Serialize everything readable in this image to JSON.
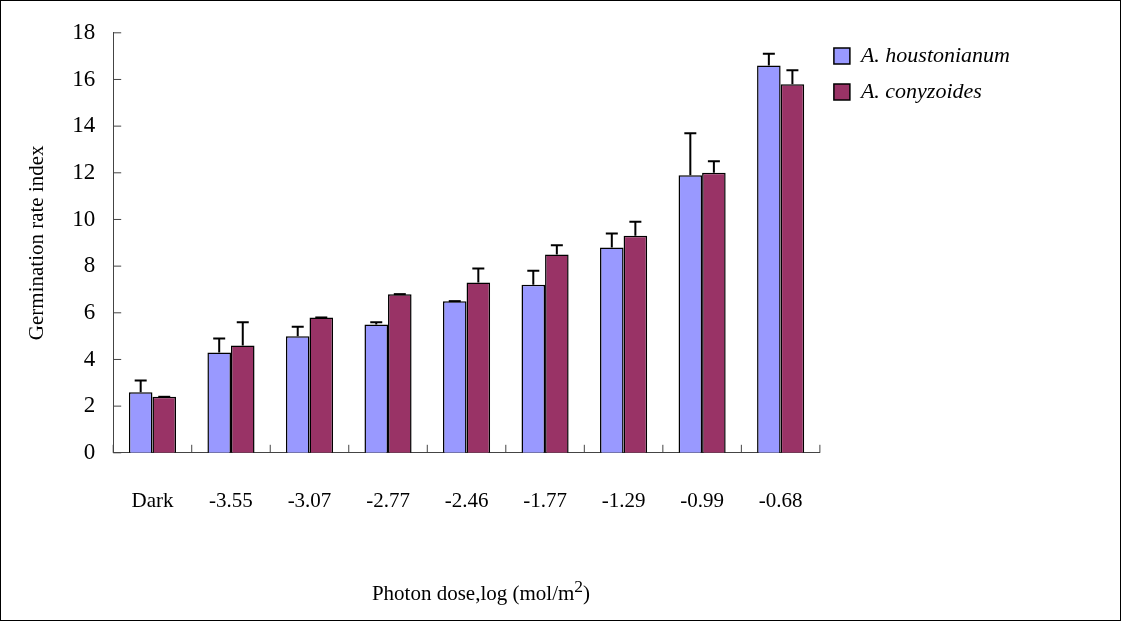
{
  "chart_data": {
    "type": "bar",
    "xlabel": "Photon dose,log (mol/m$^{2}$)",
    "ylabel": "Germination rate index",
    "categories": [
      "Dark",
      "-3.55",
      "-3.07",
      "-2.77",
      "-2.46",
      "-1.77",
      "-1.29",
      "-0.99",
      "-0.68"
    ],
    "series": [
      {
        "name": "A. houstonianum",
        "color": "#9999ff",
        "values": [
          2.6,
          4.3,
          5.0,
          5.5,
          6.5,
          7.2,
          8.8,
          11.9,
          16.6
        ],
        "errors": [
          0.5,
          0.6,
          0.4,
          0.1,
          0,
          0.6,
          0.6,
          1.8,
          0.5
        ]
      },
      {
        "name": "A. conyzoides",
        "color": "#993366",
        "values": [
          2.4,
          4.6,
          5.8,
          6.8,
          7.3,
          8.5,
          9.3,
          12.0,
          15.8
        ],
        "errors": [
          0,
          1.0,
          0,
          0,
          0.6,
          0.4,
          0.6,
          0.5,
          0.6
        ]
      }
    ],
    "ylim": [
      0,
      18
    ],
    "yticks": [
      0,
      2,
      4,
      6,
      8,
      10,
      12,
      14,
      16,
      18
    ],
    "grid": false,
    "legend": "top right"
  }
}
